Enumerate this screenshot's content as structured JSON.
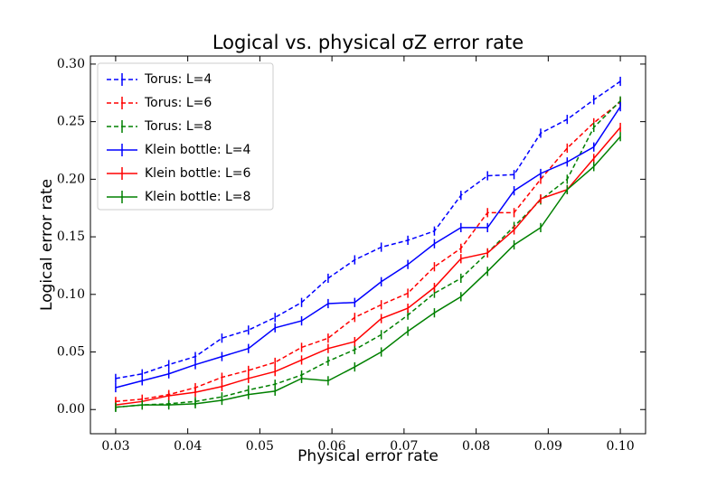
{
  "chart_data": {
    "type": "line",
    "title": "Logical vs. physical σZ error rate",
    "xlabel": "Physical error rate",
    "ylabel": "Logical error rate",
    "x": [
      0.03,
      0.03368,
      0.03737,
      0.04105,
      0.04474,
      0.04842,
      0.05211,
      0.05579,
      0.05947,
      0.06316,
      0.06684,
      0.07053,
      0.07421,
      0.07789,
      0.08158,
      0.08526,
      0.08895,
      0.09263,
      0.09632,
      0.1
    ],
    "series": [
      {
        "name": "Torus: L=4",
        "color": "#0000ff",
        "dashed": true,
        "values": [
          0.027,
          0.031,
          0.039,
          0.046,
          0.062,
          0.069,
          0.08,
          0.093,
          0.114,
          0.13,
          0.141,
          0.147,
          0.155,
          0.186,
          0.203,
          0.204,
          0.24,
          0.252,
          0.269,
          0.285
        ],
        "errors": [
          0.004,
          0.004,
          0.004,
          0.004,
          0.004,
          0.004,
          0.004,
          0.004,
          0.004,
          0.004,
          0.004,
          0.004,
          0.004,
          0.004,
          0.004,
          0.004,
          0.004,
          0.004,
          0.004,
          0.004
        ]
      },
      {
        "name": "Torus: L=6",
        "color": "#ff0000",
        "dashed": true,
        "values": [
          0.007,
          0.009,
          0.013,
          0.019,
          0.028,
          0.034,
          0.041,
          0.054,
          0.062,
          0.08,
          0.091,
          0.101,
          0.124,
          0.14,
          0.171,
          0.171,
          0.2,
          0.227,
          0.249,
          0.267
        ],
        "errors": [
          0.004,
          0.004,
          0.004,
          0.004,
          0.004,
          0.004,
          0.004,
          0.004,
          0.004,
          0.004,
          0.004,
          0.004,
          0.004,
          0.004,
          0.004,
          0.004,
          0.004,
          0.004,
          0.004,
          0.004
        ]
      },
      {
        "name": "Torus: L=8",
        "color": "#008000",
        "dashed": true,
        "values": [
          0.002,
          0.004,
          0.005,
          0.007,
          0.011,
          0.017,
          0.022,
          0.03,
          0.042,
          0.052,
          0.065,
          0.082,
          0.101,
          0.114,
          0.136,
          0.159,
          0.182,
          0.2,
          0.245,
          0.268
        ],
        "errors": [
          0.004,
          0.004,
          0.004,
          0.004,
          0.004,
          0.004,
          0.004,
          0.004,
          0.004,
          0.004,
          0.004,
          0.004,
          0.004,
          0.004,
          0.004,
          0.004,
          0.004,
          0.004,
          0.004,
          0.004
        ]
      },
      {
        "name": "Klein bottle: L=4",
        "color": "#0000ff",
        "dashed": false,
        "values": [
          0.019,
          0.025,
          0.031,
          0.039,
          0.046,
          0.053,
          0.071,
          0.077,
          0.092,
          0.093,
          0.111,
          0.126,
          0.144,
          0.158,
          0.158,
          0.19,
          0.205,
          0.215,
          0.228,
          0.263
        ],
        "errors": [
          0.004,
          0.004,
          0.004,
          0.004,
          0.004,
          0.004,
          0.004,
          0.004,
          0.004,
          0.004,
          0.004,
          0.004,
          0.004,
          0.004,
          0.004,
          0.004,
          0.004,
          0.004,
          0.004,
          0.004
        ]
      },
      {
        "name": "Klein bottle: L=6",
        "color": "#ff0000",
        "dashed": false,
        "values": [
          0.004,
          0.007,
          0.012,
          0.015,
          0.02,
          0.027,
          0.033,
          0.043,
          0.053,
          0.059,
          0.079,
          0.088,
          0.106,
          0.131,
          0.136,
          0.156,
          0.183,
          0.191,
          0.218,
          0.245
        ],
        "errors": [
          0.004,
          0.004,
          0.004,
          0.004,
          0.004,
          0.004,
          0.004,
          0.004,
          0.004,
          0.004,
          0.004,
          0.004,
          0.004,
          0.004,
          0.004,
          0.004,
          0.004,
          0.004,
          0.004,
          0.004
        ]
      },
      {
        "name": "Klein bottle: L=8",
        "color": "#008000",
        "dashed": false,
        "values": [
          0.002,
          0.004,
          0.004,
          0.005,
          0.008,
          0.013,
          0.016,
          0.027,
          0.025,
          0.037,
          0.05,
          0.068,
          0.084,
          0.098,
          0.12,
          0.143,
          0.158,
          0.191,
          0.211,
          0.237
        ],
        "errors": [
          0.004,
          0.004,
          0.004,
          0.004,
          0.004,
          0.004,
          0.004,
          0.004,
          0.004,
          0.004,
          0.004,
          0.004,
          0.004,
          0.004,
          0.004,
          0.004,
          0.004,
          0.004,
          0.004,
          0.004
        ]
      }
    ],
    "xlim": [
      0.0265,
      0.1035
    ],
    "xticks": [
      0.03,
      0.04,
      0.05,
      0.06,
      0.07,
      0.08,
      0.09,
      {
        "value": 0.1,
        "label": "0.10"
      }
    ],
    "ylim": [
      -0.021,
      0.307
    ],
    "yticks": [
      {
        "value": 0,
        "label": "0.00"
      },
      0.05,
      {
        "value": 0.1,
        "label": "0.10"
      },
      0.15,
      {
        "value": 0.2,
        "label": "0.20"
      },
      0.25,
      {
        "value": 0.3,
        "label": "0.30"
      }
    ],
    "legend": "upper left",
    "grid": false
  }
}
